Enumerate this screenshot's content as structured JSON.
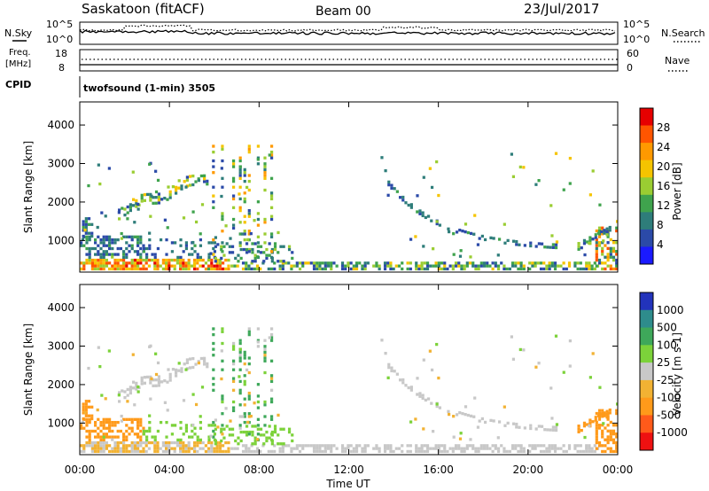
{
  "header": {
    "station": "Saskatoon (fitACF)",
    "beam": "Beam 00",
    "date": "23/Jul/2017"
  },
  "sky_panel": {
    "left_label": "N.Sky",
    "right_label": "N.Search",
    "left_ticks": [
      "10^5",
      "10^0"
    ],
    "right_ticks": [
      "10^5",
      "10^0"
    ]
  },
  "freq_panel": {
    "left_label_1": "Freq.",
    "left_label_2": "[MHz]",
    "left_ticks": [
      "18",
      "8"
    ],
    "right_ticks": [
      "60",
      "0"
    ],
    "right_label": "Nave"
  },
  "cpid_panel": {
    "label": "CPID",
    "program": "twofsound (1-min) 3505"
  },
  "colors": {
    "power_scale": [
      "#1a1aff",
      "#2b4aa8",
      "#2e7d7a",
      "#3fa34d",
      "#9acd32",
      "#f5c400",
      "#ff9900",
      "#ff5500",
      "#e60000"
    ],
    "velocity_scale": [
      "#ee1111",
      "#ff5a1a",
      "#ff9a1a",
      "#f2b233",
      "#c8c8c8",
      "#7cd23a",
      "#3ea85a",
      "#2e8c8c",
      "#2233bb"
    ]
  },
  "chart_data": [
    {
      "type": "heatmap",
      "name": "power",
      "ylabel": "Slant Range [km]",
      "xlabel": "",
      "ylim": [
        180,
        4600
      ],
      "xlim": [
        0,
        24
      ],
      "yticks": [
        {
          "value": 1000,
          "label": "1000"
        },
        {
          "value": 2000,
          "label": "2000"
        },
        {
          "value": 3000,
          "label": "3000"
        },
        {
          "value": 4000,
          "label": "4000"
        }
      ],
      "colorbar": {
        "label": "Power [dB]",
        "range": [
          0,
          32
        ],
        "ticks": [
          {
            "value": 4,
            "label": "4"
          },
          {
            "value": 8,
            "label": "8"
          },
          {
            "value": 12,
            "label": "12"
          },
          {
            "value": 16,
            "label": "16"
          },
          {
            "value": 20,
            "label": "20"
          },
          {
            "value": 24,
            "label": "24"
          },
          {
            "value": 28,
            "label": "28"
          }
        ]
      }
    },
    {
      "type": "heatmap",
      "name": "velocity",
      "ylabel": "Slant Range [km]",
      "xlabel": "Time UT",
      "ylim": [
        180,
        4600
      ],
      "xlim": [
        0,
        24
      ],
      "yticks": [
        {
          "value": 1000,
          "label": "1000"
        },
        {
          "value": 2000,
          "label": "2000"
        },
        {
          "value": 3000,
          "label": "3000"
        },
        {
          "value": 4000,
          "label": "4000"
        }
      ],
      "xticks": [
        {
          "value": 0,
          "label": "00:00"
        },
        {
          "value": 4,
          "label": "04:00"
        },
        {
          "value": 8,
          "label": "08:00"
        },
        {
          "value": 12,
          "label": "12:00"
        },
        {
          "value": 16,
          "label": "16:00"
        },
        {
          "value": 20,
          "label": "20:00"
        },
        {
          "value": 24,
          "label": "00:00"
        }
      ],
      "colorbar": {
        "label": "Velocity [m s-1]",
        "ticks": [
          "1000",
          "500",
          "100",
          "25",
          "-25",
          "-100",
          "-500",
          "-1000"
        ]
      }
    }
  ]
}
